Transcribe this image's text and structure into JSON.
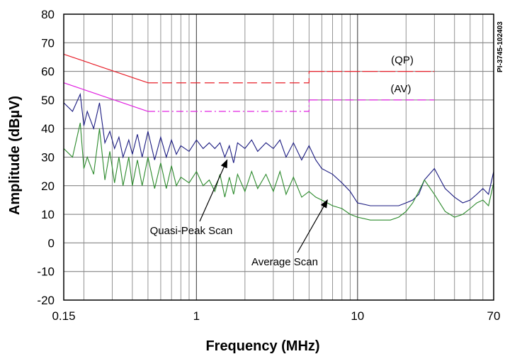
{
  "chart_data": {
    "type": "line",
    "xlabel": "Frequency (MHz)",
    "ylabel": "Amplitude (dBµV)",
    "x_scale": "log",
    "xlim": [
      0.15,
      70
    ],
    "ylim": [
      -20,
      80
    ],
    "x_ticks": [
      {
        "value": 0.15,
        "label": "0.15"
      },
      {
        "value": 1,
        "label": "1"
      },
      {
        "value": 10,
        "label": "10"
      },
      {
        "value": 70,
        "label": "70"
      }
    ],
    "y_ticks": [
      -20,
      -10,
      0,
      10,
      20,
      30,
      40,
      50,
      60,
      70,
      80
    ],
    "grid": true,
    "doc_id": "PI-3745-102403",
    "limit_lines": [
      {
        "name": "(QP)",
        "color": "#e8202a",
        "style": "solid+dashed",
        "points": [
          [
            0.15,
            66
          ],
          [
            0.5,
            56
          ],
          [
            5,
            56
          ],
          [
            5,
            60
          ],
          [
            30,
            60
          ]
        ]
      },
      {
        "name": "(AV)",
        "color": "#e020e0",
        "style": "solid+dashdot",
        "points": [
          [
            0.15,
            56
          ],
          [
            0.5,
            46
          ],
          [
            5,
            46
          ],
          [
            5,
            50
          ],
          [
            30,
            50
          ]
        ]
      }
    ],
    "series": [
      {
        "name": "Quasi-Peak Scan",
        "color": "#1a1a80",
        "x": [
          0.15,
          0.17,
          0.19,
          0.2,
          0.21,
          0.23,
          0.25,
          0.27,
          0.29,
          0.31,
          0.33,
          0.35,
          0.38,
          0.4,
          0.43,
          0.46,
          0.5,
          0.55,
          0.6,
          0.65,
          0.7,
          0.75,
          0.8,
          0.9,
          1.0,
          1.1,
          1.2,
          1.3,
          1.4,
          1.5,
          1.6,
          1.7,
          1.8,
          2.0,
          2.2,
          2.4,
          2.7,
          3.0,
          3.3,
          3.6,
          4.0,
          4.5,
          5,
          5.5,
          6,
          7,
          8,
          9,
          10,
          12,
          14,
          16,
          18,
          20,
          22,
          24,
          26,
          30,
          35,
          40,
          45,
          50,
          55,
          60,
          65,
          70
        ],
        "y": [
          49,
          46,
          52,
          41,
          46,
          40,
          49,
          35,
          39,
          33,
          37,
          30,
          36,
          31,
          38,
          30,
          39,
          29,
          37,
          30,
          36,
          31,
          34,
          32,
          36,
          33,
          35,
          33,
          35,
          30,
          34,
          28,
          35,
          33,
          36,
          32,
          35,
          33,
          36,
          30,
          35,
          29,
          34,
          29,
          26,
          24,
          21,
          18,
          14,
          13,
          13,
          13,
          13,
          14,
          15,
          17,
          22,
          26,
          19,
          16,
          14,
          15,
          17,
          19,
          17,
          25
        ]
      },
      {
        "name": "Average Scan",
        "color": "#2c8a2c",
        "x": [
          0.15,
          0.17,
          0.19,
          0.2,
          0.21,
          0.23,
          0.25,
          0.27,
          0.29,
          0.31,
          0.33,
          0.35,
          0.38,
          0.4,
          0.43,
          0.46,
          0.5,
          0.55,
          0.6,
          0.65,
          0.7,
          0.75,
          0.8,
          0.9,
          1.0,
          1.1,
          1.2,
          1.3,
          1.4,
          1.5,
          1.6,
          1.7,
          1.8,
          2.0,
          2.2,
          2.4,
          2.7,
          3.0,
          3.3,
          3.6,
          4.0,
          4.5,
          5,
          5.5,
          6,
          7,
          8,
          9,
          10,
          12,
          14,
          16,
          18,
          20,
          22,
          24,
          26,
          30,
          35,
          40,
          45,
          50,
          55,
          60,
          65,
          70
        ],
        "y": [
          33,
          30,
          42,
          26,
          30,
          24,
          40,
          22,
          32,
          21,
          30,
          20,
          30,
          20,
          29,
          20,
          30,
          19,
          28,
          19,
          27,
          20,
          23,
          21,
          25,
          20,
          22,
          18,
          24,
          16,
          23,
          17,
          24,
          18,
          25,
          19,
          24,
          18,
          25,
          17,
          23,
          16,
          18,
          16,
          15,
          13,
          12,
          10,
          9,
          8,
          8,
          8,
          9,
          11,
          14,
          18,
          22,
          17,
          11,
          9,
          10,
          12,
          14,
          15,
          13,
          21
        ]
      }
    ],
    "annotations": [
      {
        "text": "Quasi-Peak Scan",
        "arrow_to": [
          1.55,
          29
        ]
      },
      {
        "text": "Average Scan",
        "arrow_to": [
          6.5,
          15
        ]
      }
    ]
  }
}
